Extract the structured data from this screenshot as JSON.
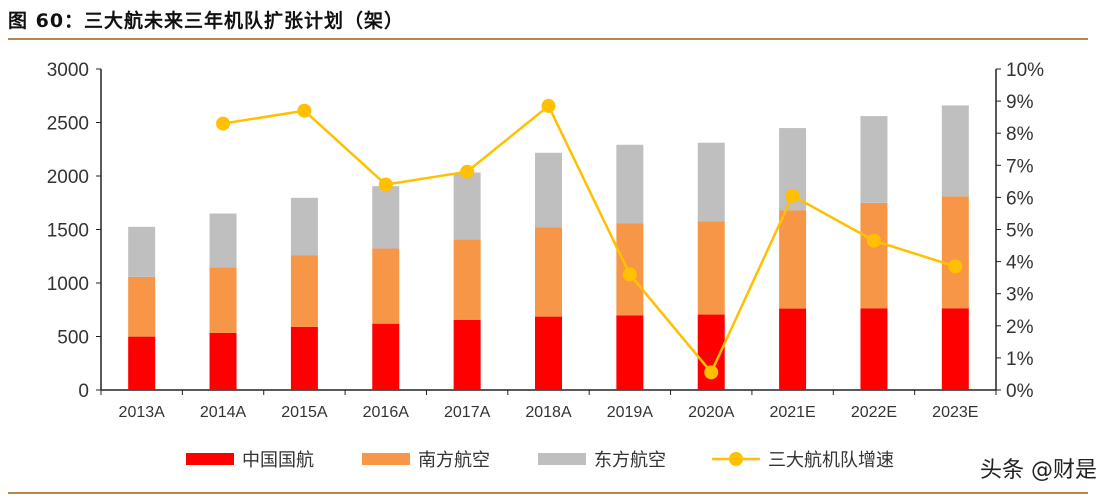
{
  "title": "图 60：三大航未来三年机队扩张计划（架）",
  "watermark": "头条 @财是",
  "chart_data": {
    "type": "bar",
    "stacked": true,
    "categories": [
      "2013A",
      "2014A",
      "2015A",
      "2016A",
      "2017A",
      "2018A",
      "2019A",
      "2020A",
      "2021E",
      "2022E",
      "2023E"
    ],
    "series": [
      {
        "name": "中国国航",
        "axis": "left",
        "type": "bar",
        "color": "#ff0000",
        "values": [
          499,
          533,
          589,
          620,
          655,
          686,
          698,
          705,
          761,
          764,
          764
        ]
      },
      {
        "name": "南方航空",
        "axis": "left",
        "type": "bar",
        "color": "#f79646",
        "values": [
          558,
          614,
          668,
          702,
          751,
          836,
          858,
          870,
          917,
          985,
          1045
        ]
      },
      {
        "name": "东方航空",
        "axis": "left",
        "type": "bar",
        "color": "#bfbfbf",
        "values": [
          468,
          502,
          539,
          583,
          627,
          695,
          736,
          736,
          770,
          811,
          851
        ]
      },
      {
        "name": "三大航机队增速",
        "axis": "right",
        "type": "line",
        "color": "#ffc000",
        "values": [
          null,
          8.3,
          8.7,
          6.4,
          6.8,
          8.85,
          3.6,
          0.55,
          6.05,
          4.65,
          3.85
        ]
      }
    ],
    "left_axis": {
      "ylim": [
        0,
        3000
      ],
      "ticks": [
        "0",
        "500",
        "1000",
        "1500",
        "2000",
        "2500",
        "3000"
      ]
    },
    "right_axis": {
      "ylim": [
        0,
        10
      ],
      "unit": "%",
      "ticks": [
        "0%",
        "1%",
        "2%",
        "3%",
        "4%",
        "5%",
        "6%",
        "7%",
        "8%",
        "9%",
        "10%"
      ]
    },
    "grid": false,
    "legend": "bottom"
  }
}
